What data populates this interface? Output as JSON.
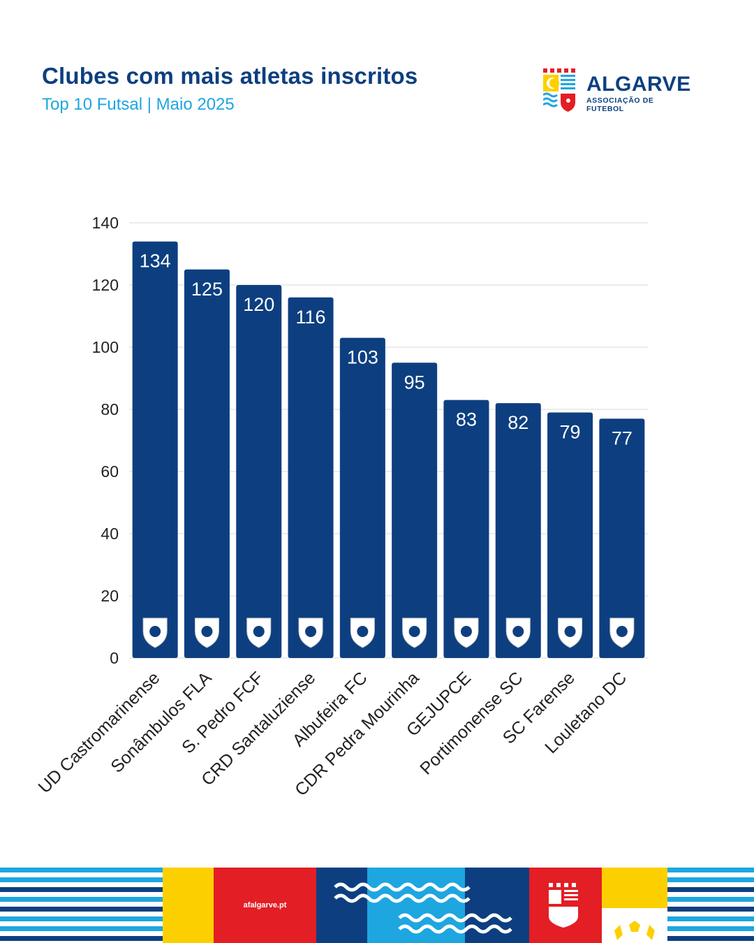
{
  "header": {
    "title": "Clubes com mais atletas inscritos",
    "subtitle": "Top 10 Futsal | Maio 2025"
  },
  "brand": {
    "name": "ALGARVE",
    "tagline": "ASSOCIAÇÃO DE FUTEBOL"
  },
  "footer": {
    "url": "afalgarve.pt"
  },
  "colors": {
    "bar": "#0d3f80",
    "title": "#0d3f80",
    "subtitle": "#1ea6e0",
    "grid": "#d9d9d9",
    "footer_light_blue": "#1ea6e0",
    "footer_dark_blue": "#0d3f80",
    "footer_red": "#e31e24",
    "footer_yellow": "#fcd000"
  },
  "chart_data": {
    "type": "bar",
    "categories": [
      "UD Castromarinense",
      "Sonâmbulos FLA",
      "S. Pedro FCF",
      "CRD Santaluziense",
      "Albufeira FC",
      "CDR Pedra Mourinha",
      "GEJUPCE",
      "Portimonense SC",
      "SC Farense",
      "Louletano DC"
    ],
    "values": [
      134,
      125,
      120,
      116,
      103,
      95,
      83,
      82,
      79,
      77
    ],
    "ylim": [
      0,
      140
    ],
    "yticks": [
      0,
      20,
      40,
      60,
      80,
      100,
      120,
      140
    ],
    "grid": true,
    "data_labels": true,
    "bar_icons": [
      "club-crest-icon",
      "club-crest-icon",
      "club-crest-icon",
      "club-crest-icon",
      "club-crest-icon",
      "club-crest-icon",
      "club-crest-icon",
      "club-crest-icon",
      "club-crest-icon",
      "club-crest-icon"
    ]
  }
}
